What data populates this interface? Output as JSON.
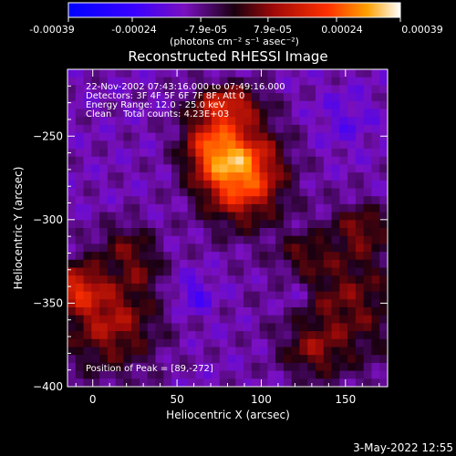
{
  "chart_data": {
    "type": "heatmap",
    "title": "Reconstructed RHESSI Image",
    "xlabel": "Heliocentric X (arcsec)",
    "ylabel": "Heliocentric Y (arcsec)",
    "xlim": [
      -15,
      175
    ],
    "ylim": [
      -400,
      -210
    ],
    "x_ticks": [
      0,
      50,
      100,
      150
    ],
    "y_ticks": [
      -250,
      -300,
      -350,
      -400
    ],
    "colorbar": {
      "ticks": [
        "-0.00039",
        "-0.00024",
        "-7.9e-05",
        "7.9e-05",
        "0.00024",
        "0.00039"
      ],
      "units": "(photons cm⁻² s⁻¹ asec⁻²)",
      "range": [
        -0.00039,
        0.00039
      ]
    },
    "annotations": {
      "time": "22-Nov-2002 07:43:16.000 to 07:49:16.000",
      "detectors": "Detectors: 3F 4F 5F 6F 7F 8F, Att 0",
      "energy": "Energy Range: 12.0 - 25.0 keV",
      "clean": "Clean    Total counts: 4.23E+03",
      "peak": "Position of Peak = [89,-272]"
    },
    "peak": [
      89,
      -272
    ],
    "sources": [
      {
        "x": 88,
        "y": -272,
        "sx": 17,
        "sy": 20,
        "amp": 1.0
      },
      {
        "x": 70,
        "y": -255,
        "sx": 12,
        "sy": 14,
        "amp": 0.55
      },
      {
        "x": 80,
        "y": -230,
        "sx": 14,
        "sy": 8,
        "amp": 0.55
      },
      {
        "x": 20,
        "y": -315,
        "sx": 12,
        "sy": 10,
        "amp": 0.3
      },
      {
        "x": 10,
        "y": -360,
        "sx": 20,
        "sy": 22,
        "amp": 0.55
      },
      {
        "x": -10,
        "y": -340,
        "sx": 10,
        "sy": 10,
        "amp": 0.5
      },
      {
        "x": 150,
        "y": -350,
        "sx": 25,
        "sy": 28,
        "amp": 0.42
      },
      {
        "x": 160,
        "y": -305,
        "sx": 12,
        "sy": 10,
        "amp": 0.35
      },
      {
        "x": 130,
        "y": -380,
        "sx": 12,
        "sy": 10,
        "amp": 0.3
      },
      {
        "x": 125,
        "y": -320,
        "sx": 10,
        "sy": 8,
        "amp": 0.25
      },
      {
        "x": 30,
        "y": -330,
        "sx": 8,
        "sy": 8,
        "amp": 0.2
      },
      {
        "x": 60,
        "y": -345,
        "sx": 8,
        "sy": 8,
        "amp": -0.25
      },
      {
        "x": 120,
        "y": -345,
        "sx": 8,
        "sy": 8,
        "amp": -0.2
      },
      {
        "x": 150,
        "y": -240,
        "sx": 12,
        "sy": 12,
        "amp": -0.15
      }
    ]
  },
  "footer": {
    "date": "3-May-2022 12:55"
  }
}
